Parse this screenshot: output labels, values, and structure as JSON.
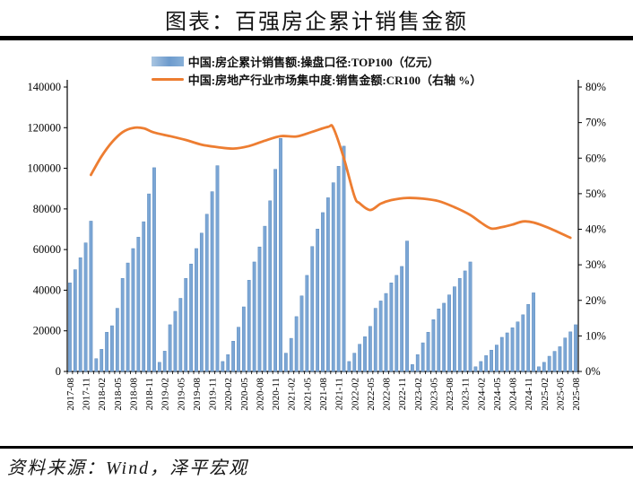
{
  "title": "图表：百强房企累计销售金额",
  "source": "资料来源：Wind，泽平宏观",
  "colors": {
    "bar_fill": "#7BA6D5",
    "bar_stroke": "#5E8CBE",
    "line": "#ED7D31",
    "axis": "#000000",
    "title_rule": "#000000"
  },
  "legend": [
    {
      "label": "中国:房企累计销售额:操盘口径:TOP100（亿元）",
      "marker": "bar-swatch"
    },
    {
      "label": "中国:房地产行业市场集中度:销售金额:CR100（右轴 %）",
      "marker": "line-swatch"
    }
  ],
  "chart_data": {
    "type": "bar",
    "title": "图表：百强房企累计销售金额",
    "start_month": "2017-08",
    "months_count": 97,
    "x_tick_labels": [
      "2017-08",
      "2017-11",
      "2018-02",
      "2018-05",
      "2018-08",
      "2018-11",
      "2019-02",
      "2019-05",
      "2019-08",
      "2019-11",
      "2020-02",
      "2020-05",
      "2020-08",
      "2020-11",
      "2021-02",
      "2021-05",
      "2021-08",
      "2021-11",
      "2022-02",
      "2022-05",
      "2022-08",
      "2022-11",
      "2023-02",
      "2023-05",
      "2023-08",
      "2023-11",
      "2024-02",
      "2024-05",
      "2024-08",
      "2024-11",
      "2025-02",
      "2025-05",
      "2025-08"
    ],
    "x_tick_every_n_months": 3,
    "left_axis": {
      "min": 0,
      "max": 140000,
      "step": 20000,
      "tick_labels": [
        "0",
        "20000",
        "40000",
        "60000",
        "80000",
        "100000",
        "120000",
        "140000"
      ]
    },
    "right_axis": {
      "min": 0,
      "max": 80,
      "step": 10,
      "tick_labels": [
        "0%",
        "10%",
        "20%",
        "30%",
        "40%",
        "50%",
        "60%",
        "70%",
        "80%"
      ]
    },
    "grid": false,
    "legend_position": "top-center",
    "series": [
      {
        "name": "中国:房企累计销售额:操盘口径:TOP100（亿元）",
        "type": "bar",
        "axis": "left",
        "values": [
          43600,
          50100,
          56000,
          63300,
          74000,
          6300,
          10900,
          19300,
          22500,
          31100,
          45800,
          53400,
          60500,
          66100,
          73700,
          87400,
          100300,
          4500,
          10000,
          23000,
          29600,
          36000,
          45800,
          52900,
          60500,
          68100,
          77400,
          88500,
          101300,
          4900,
          8300,
          14900,
          21800,
          31800,
          44900,
          53900,
          61300,
          71500,
          84000,
          99500,
          114700,
          9000,
          16300,
          27000,
          37200,
          47300,
          61500,
          70100,
          78200,
          85500,
          92900,
          101000,
          110900,
          4900,
          9000,
          13400,
          17100,
          22200,
          31100,
          34700,
          38400,
          43600,
          47300,
          51700,
          64200,
          3400,
          8300,
          14100,
          19300,
          25500,
          30800,
          33600,
          37700,
          41700,
          45800,
          49500,
          53900,
          2300,
          4900,
          7800,
          10500,
          13000,
          16800,
          19000,
          21500,
          24400,
          27900,
          33000,
          38700,
          2300,
          4500,
          7500,
          9900,
          12200,
          16500,
          19500,
          23000
        ]
      },
      {
        "name": "中国:房地产行业市场集中度:销售金额:CR100（右轴 %）",
        "type": "line",
        "axis": "right",
        "points": [
          [
            4,
            55.3
          ],
          [
            6,
            60.5
          ],
          [
            8,
            64.5
          ],
          [
            10,
            67.3
          ],
          [
            12,
            68.5
          ],
          [
            14,
            68.4
          ],
          [
            16,
            67.2
          ],
          [
            19,
            66.2
          ],
          [
            22,
            65.1
          ],
          [
            25,
            63.8
          ],
          [
            28,
            63.1
          ],
          [
            31,
            62.7
          ],
          [
            34,
            63.4
          ],
          [
            37,
            64.9
          ],
          [
            40,
            66.2
          ],
          [
            43,
            66.1
          ],
          [
            46,
            67.4
          ],
          [
            49,
            68.8
          ],
          [
            50,
            68.5
          ],
          [
            52,
            60.0
          ],
          [
            54,
            49.3
          ],
          [
            55,
            47.3
          ],
          [
            57,
            45.4
          ],
          [
            59,
            47.2
          ],
          [
            61,
            48.2
          ],
          [
            64,
            48.8
          ],
          [
            67,
            48.6
          ],
          [
            70,
            47.9
          ],
          [
            73,
            46.2
          ],
          [
            76,
            44.0
          ],
          [
            78,
            41.9
          ],
          [
            80,
            40.2
          ],
          [
            82,
            40.6
          ],
          [
            84,
            41.3
          ],
          [
            86,
            42.2
          ],
          [
            88,
            41.9
          ],
          [
            91,
            40.3
          ],
          [
            95,
            37.6
          ]
        ]
      }
    ]
  }
}
